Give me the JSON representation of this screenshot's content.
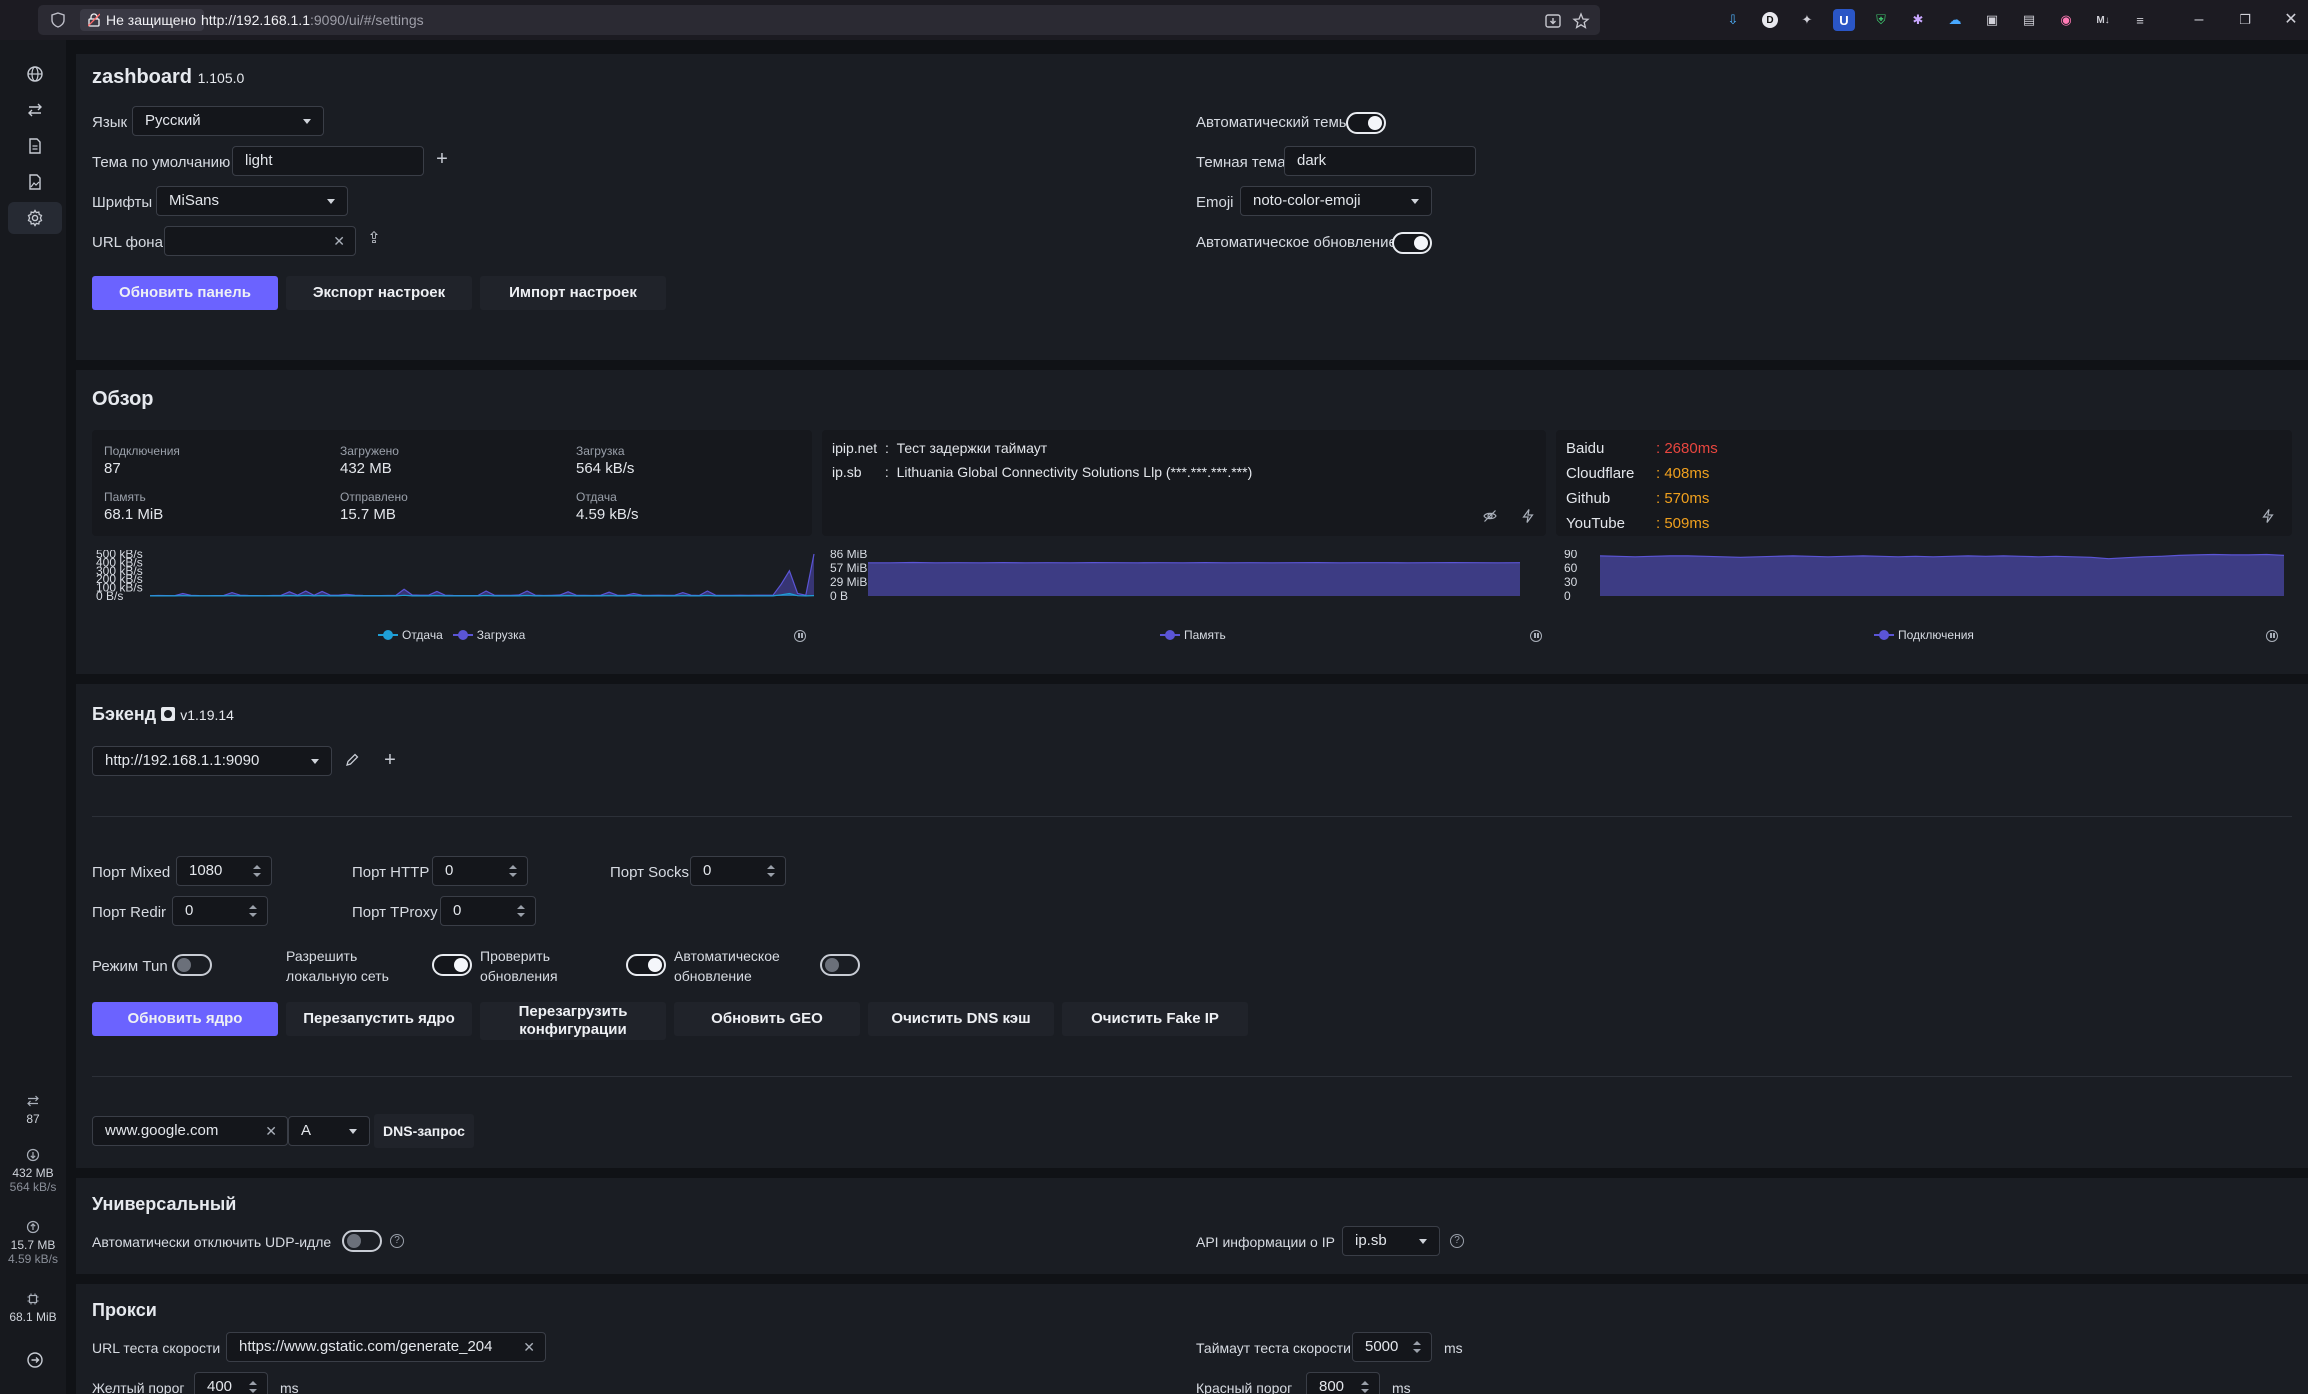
{
  "browser": {
    "insecure_label": "Не защищено",
    "url_host": "http://192.168.1.1",
    "url_rest": ":9090/ui/#/settings"
  },
  "sidebar_stats": {
    "connections": "87",
    "downloaded": "432 MB",
    "download_speed": "564 kB/s",
    "uploaded": "15.7 MB",
    "upload_speed": "4.59 kB/s",
    "memory": "68.1 MiB"
  },
  "zashboard": {
    "title": "zashboard",
    "version": "1.105.0",
    "language_label": "Язык",
    "language_value": "Русский",
    "default_theme_label": "Тема по умолчанию",
    "default_theme_value": "light",
    "fonts_label": "Шрифты",
    "fonts_value": "MiSans",
    "bg_url_label": "URL фона",
    "bg_url_value": "",
    "auto_theme_label": "Автоматический темы",
    "dark_theme_label": "Темная тема",
    "dark_theme_value": "dark",
    "emoji_label": "Emoji",
    "emoji_value": "noto-color-emoji",
    "auto_update_label": "Автоматическое обновление",
    "update_panel_btn": "Обновить панель",
    "export_btn": "Экспорт настроек",
    "import_btn": "Импорт настроек"
  },
  "overview": {
    "title": "Обзор",
    "stats": {
      "connections_k": "Подключения",
      "connections_v": "87",
      "downloaded_k": "Загружено",
      "downloaded_v": "432 MB",
      "download_k": "Загрузка",
      "download_v": "564 kB/s",
      "memory_k": "Память",
      "memory_v": "68.1 MiB",
      "sent_k": "Отправлено",
      "sent_v": "15.7 MB",
      "upload_k": "Отдача",
      "upload_v": "4.59 kB/s"
    },
    "ip": [
      {
        "src": "ipip.net",
        "sep": ":",
        "text": "Тест задержки таймаут"
      },
      {
        "src": "ip.sb",
        "sep": ":",
        "text": "Lithuania Global Connectivity Solutions Llp (***.***.***.***)"
      }
    ],
    "latency": [
      {
        "name": "Baidu",
        "value": ": 2680ms",
        "color": "#e8463f"
      },
      {
        "name": "Cloudflare",
        "value": ": 408ms",
        "color": "#f0a01e"
      },
      {
        "name": "Github",
        "value": ": 570ms",
        "color": "#f0a01e"
      },
      {
        "name": "YouTube",
        "value": ": 509ms",
        "color": "#f0a01e"
      }
    ],
    "legend_upload": "Отдача",
    "legend_download": "Загрузка",
    "legend_memory": "Память",
    "legend_connections": "Подключения",
    "traffic_ticks": [
      "500 kB/s",
      "400 kB/s",
      "300 kB/s",
      "200 kB/s",
      "100 kB/s",
      "0 B/s"
    ],
    "memory_ticks": [
      "86 MiB",
      "57 MiB",
      "29 MiB",
      "0 B"
    ],
    "conn_ticks": [
      "90",
      "60",
      "30",
      "0"
    ]
  },
  "chart_data": [
    {
      "type": "area",
      "series": [
        {
          "name": "Отдача",
          "color": "#1f9fd6"
        },
        {
          "name": "Загрузка",
          "color": "#5b55d6"
        }
      ],
      "y_ticks": [
        "500 kB/s",
        "400 kB/s",
        "300 kB/s",
        "200 kB/s",
        "100 kB/s",
        "0 B/s"
      ],
      "ylim": [
        0,
        500
      ],
      "download_values": [
        4,
        6,
        5,
        4,
        30,
        8,
        5,
        4,
        5,
        6,
        40,
        9,
        6,
        5,
        4,
        6,
        8,
        50,
        10,
        60,
        8,
        55,
        9,
        10,
        20,
        9,
        6,
        5,
        5,
        6,
        7,
        80,
        12,
        10,
        9,
        55,
        10,
        6,
        5,
        5,
        6,
        60,
        10,
        8,
        7,
        12,
        60,
        9,
        6,
        8,
        12,
        50,
        10,
        8,
        6,
        9,
        45,
        9,
        8,
        30,
        10,
        8,
        9,
        7,
        8,
        40,
        9,
        6,
        60,
        10,
        8,
        7,
        9,
        8,
        9,
        10,
        10,
        140,
        300,
        30,
        10,
        564
      ],
      "upload_values": [
        1,
        1,
        1,
        1,
        3,
        1,
        1,
        1,
        1,
        1,
        4,
        1,
        1,
        1,
        1,
        1,
        1,
        5,
        1,
        6,
        1,
        5,
        1,
        1,
        2,
        1,
        1,
        1,
        1,
        1,
        1,
        8,
        1,
        1,
        1,
        5,
        1,
        1,
        1,
        1,
        1,
        6,
        1,
        1,
        1,
        1,
        6,
        1,
        1,
        1,
        1,
        5,
        1,
        1,
        1,
        1,
        4,
        1,
        1,
        3,
        1,
        1,
        1,
        1,
        1,
        4,
        1,
        1,
        6,
        1,
        1,
        1,
        1,
        1,
        1,
        1,
        1,
        14,
        30,
        3,
        1,
        5
      ]
    },
    {
      "type": "area",
      "series": [
        {
          "name": "Память",
          "color": "#5b55d6"
        }
      ],
      "y_ticks": [
        "86 MiB",
        "57 MiB",
        "29 MiB",
        "0 B"
      ],
      "ylim": [
        0,
        86
      ],
      "values": [
        68,
        68,
        68.5,
        68,
        68.2,
        68,
        68.3,
        68,
        68.1,
        68,
        68.4,
        68.2,
        68,
        68.1,
        68,
        68.3,
        68,
        68.2,
        68,
        68.1,
        68.3,
        68,
        68.2,
        68.1,
        68,
        68.2,
        68.4,
        68.1,
        68,
        68.2
      ]
    },
    {
      "type": "area",
      "series": [
        {
          "name": "Подключения",
          "color": "#5b55d6"
        }
      ],
      "y_ticks": [
        "90",
        "60",
        "30",
        "0"
      ],
      "ylim": [
        0,
        90
      ],
      "values": [
        86,
        85,
        84,
        85,
        86,
        86,
        85,
        84,
        83,
        84,
        85,
        86,
        85,
        84,
        85,
        86,
        85,
        84,
        85,
        84,
        85,
        86,
        85,
        86,
        85,
        84,
        85,
        84,
        83,
        80,
        82,
        84,
        85,
        87,
        88,
        89,
        88,
        88,
        89,
        87
      ]
    }
  ],
  "backend": {
    "title": "Бэкенд",
    "version": "v1.19.14",
    "url_value": "http://192.168.1.1:9090",
    "port_mixed_label": "Порт Mixed",
    "port_mixed": "1080",
    "port_http_label": "Порт HTTP",
    "port_http": "0",
    "port_socks_label": "Порт Socks",
    "port_socks": "0",
    "port_redir_label": "Порт Redir",
    "port_redir": "0",
    "port_tproxy_label": "Порт TProxy",
    "port_tproxy": "0",
    "tun_label": "Режим Tun",
    "allow_lan_label_1": "Разрешить",
    "allow_lan_label_2": "локальную сеть",
    "check_updates_label_1": "Проверить",
    "check_updates_label_2": "обновления",
    "auto_update_label_1": "Автоматическое",
    "auto_update_label_2": "обновление",
    "btn_update_core": "Обновить ядро",
    "btn_restart_core": "Перезапустить ядро",
    "btn_reload_config_1": "Перезагрузить",
    "btn_reload_config_2": "конфигурации",
    "btn_update_geo": "Обновить GEO",
    "btn_flush_dns": "Очистить DNS кэш",
    "btn_flush_fakeip": "Очистить Fake IP",
    "dns_domain": "www.google.com",
    "dns_type": "A",
    "dns_btn": "DNS-запрос"
  },
  "universal": {
    "title": "Универсальный",
    "udp_idle_label": "Автоматически отключить UDP-идле",
    "ip_api_label": "API информации о IP",
    "ip_api_value": "ip.sb"
  },
  "proxies": {
    "title": "Прокси",
    "speedtest_url_label": "URL теста скорости",
    "speedtest_url_value": "https://www.gstatic.com/generate_204",
    "timeout_label": "Таймаут теста скорости",
    "timeout_value": "5000",
    "timeout_unit": "ms",
    "yellow_label": "Желтый порог",
    "yellow_value": "400",
    "yellow_unit": "ms",
    "red_label": "Красный порог",
    "red_value": "800",
    "red_unit": "ms"
  }
}
